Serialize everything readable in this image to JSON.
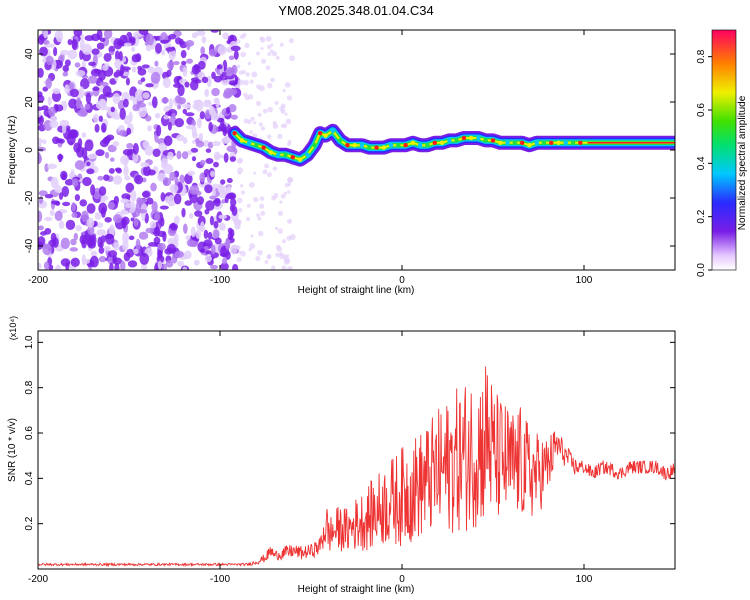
{
  "title": "YM08.2025.348.01.04.C34",
  "chart_data": [
    {
      "type": "heatmap",
      "name": "spectrogram",
      "xlabel": "Height of straight line (km)",
      "ylabel": "Frequency (Hz)",
      "xlim": [
        -200,
        150
      ],
      "ylim": [
        -50,
        50
      ],
      "xticks": [
        -200,
        -100,
        0,
        100
      ],
      "xtick_labels": [
        "-200",
        "-100",
        "0",
        "100"
      ],
      "yticks": [
        -40,
        -20,
        0,
        20,
        40
      ],
      "ytick_labels": [
        "-40",
        "-20",
        "0",
        "20",
        "40"
      ],
      "noise_region_x": [
        -200,
        -90
      ],
      "ridge": {
        "x": [
          -92,
          -88,
          -84,
          -80,
          -76,
          -72,
          -68,
          -64,
          -60,
          -56,
          -52,
          -48,
          -45,
          -42,
          -38,
          -34,
          -30,
          -26,
          -22,
          -18,
          -14,
          -10,
          -6,
          -2,
          2,
          6,
          10,
          14,
          18,
          22,
          26,
          30,
          34,
          38,
          42,
          46,
          50,
          54,
          58,
          62,
          66,
          70,
          74,
          78,
          82,
          86,
          90,
          94,
          98,
          102,
          110,
          120,
          130,
          140,
          150
        ],
        "y": [
          7,
          4,
          3,
          2,
          1,
          -1,
          -2,
          -2,
          -3,
          -4,
          -2,
          2,
          7,
          6,
          8,
          4,
          2,
          2,
          2,
          1,
          1,
          1,
          2,
          2,
          2,
          3,
          2,
          2,
          3,
          3,
          4,
          4,
          5,
          5,
          5,
          4,
          4,
          3,
          3,
          3,
          3,
          2,
          3,
          3,
          3,
          3,
          3,
          3,
          3,
          3,
          3,
          3,
          3,
          3,
          3
        ]
      },
      "colorbar": {
        "label": "Normalized spectral amplitude",
        "range": [
          0.0,
          0.9
        ],
        "ticks": [
          0.0,
          0.2,
          0.4,
          0.6,
          0.8
        ],
        "tick_labels": [
          "0.0",
          "0.2",
          "0.4",
          "0.6",
          "0.8"
        ]
      }
    },
    {
      "type": "line",
      "name": "snr",
      "xlabel": "Height of straight line (km)",
      "ylabel": "SNR (10 * v/v)",
      "y_multiplier": "(x10⁴)",
      "xlim": [
        -200,
        150
      ],
      "ylim": [
        0,
        1.05
      ],
      "xticks": [
        -200,
        -100,
        0,
        100
      ],
      "xtick_labels": [
        "-200",
        "-100",
        "0",
        "100"
      ],
      "yticks": [
        0.2,
        0.4,
        0.6,
        0.8,
        1.0
      ],
      "ytick_labels": [
        "0.2",
        "0.4",
        "0.6",
        "0.8",
        "1.0"
      ],
      "series": [
        {
          "name": "SNR",
          "color": "#ee3333",
          "x": [
            -200,
            -90,
            -85,
            -80,
            -75,
            -72,
            -70,
            -65,
            -60,
            -55,
            -50,
            -45,
            -42,
            -40,
            -35,
            -30,
            -25,
            -20,
            -15,
            -10,
            -5,
            0,
            5,
            10,
            15,
            20,
            25,
            30,
            35,
            40,
            45,
            47,
            50,
            55,
            60,
            65,
            70,
            75,
            80,
            85,
            90,
            95,
            100,
            105,
            110,
            115,
            120,
            125,
            130,
            135,
            140,
            145,
            150
          ],
          "values": [
            0.02,
            0.02,
            0.02,
            0.03,
            0.05,
            0.08,
            0.06,
            0.07,
            0.08,
            0.07,
            0.08,
            0.1,
            0.2,
            0.15,
            0.18,
            0.17,
            0.2,
            0.22,
            0.25,
            0.28,
            0.3,
            0.32,
            0.35,
            0.37,
            0.4,
            0.43,
            0.45,
            0.48,
            0.5,
            0.52,
            0.55,
            0.6,
            0.5,
            0.48,
            0.45,
            0.47,
            0.42,
            0.42,
            0.45,
            0.55,
            0.5,
            0.45,
            0.45,
            0.42,
            0.45,
            0.44,
            0.42,
            0.45,
            0.45,
            0.45,
            0.45,
            0.42,
            0.44
          ],
          "jitter": [
            0.005,
            0.005,
            0.006,
            0.01,
            0.02,
            0.03,
            0.02,
            0.03,
            0.03,
            0.03,
            0.03,
            0.04,
            0.12,
            0.08,
            0.1,
            0.1,
            0.12,
            0.14,
            0.16,
            0.18,
            0.2,
            0.22,
            0.24,
            0.24,
            0.26,
            0.28,
            0.3,
            0.32,
            0.34,
            0.34,
            0.36,
            0.4,
            0.3,
            0.28,
            0.26,
            0.25,
            0.22,
            0.18,
            0.14,
            0.08,
            0.05,
            0.04,
            0.03,
            0.03,
            0.03,
            0.03,
            0.03,
            0.03,
            0.03,
            0.03,
            0.03,
            0.03,
            0.03
          ]
        }
      ]
    }
  ]
}
